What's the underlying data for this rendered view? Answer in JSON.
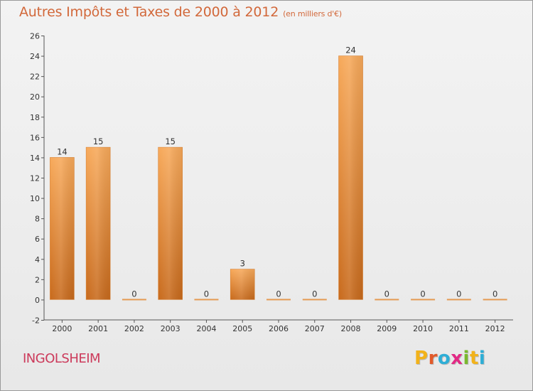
{
  "header": {
    "title": "Autres Impôts et Taxes de 2000 à 2012",
    "unit": "(en milliers d'€)"
  },
  "footer": {
    "commune": "INGOLSHEIM",
    "logo_letters": [
      "P",
      "r",
      "o",
      "x",
      "i",
      "t",
      "i"
    ],
    "logo_colors": [
      "#f2b21a",
      "#e25a2a",
      "#2eaed6",
      "#e22a85",
      "#7ab82e",
      "#f2b21a",
      "#2eaed6"
    ]
  },
  "chart_data": {
    "type": "bar",
    "title": "Autres Impôts et Taxes de 2000 à 2012",
    "subtitle": "(en milliers d'€)",
    "xlabel": "",
    "ylabel": "",
    "categories": [
      "2000",
      "2001",
      "2002",
      "2003",
      "2004",
      "2005",
      "2006",
      "2007",
      "2008",
      "2009",
      "2010",
      "2011",
      "2012"
    ],
    "values": [
      14,
      15,
      0,
      15,
      0,
      3,
      0,
      0,
      24,
      0,
      0,
      0,
      0
    ],
    "ylim": [
      -2,
      26
    ],
    "yticks": [
      -2,
      0,
      2,
      4,
      6,
      8,
      10,
      12,
      14,
      16,
      18,
      20,
      22,
      24,
      26
    ],
    "grid": false,
    "legend": "none",
    "bar_color": "#e88a34"
  }
}
